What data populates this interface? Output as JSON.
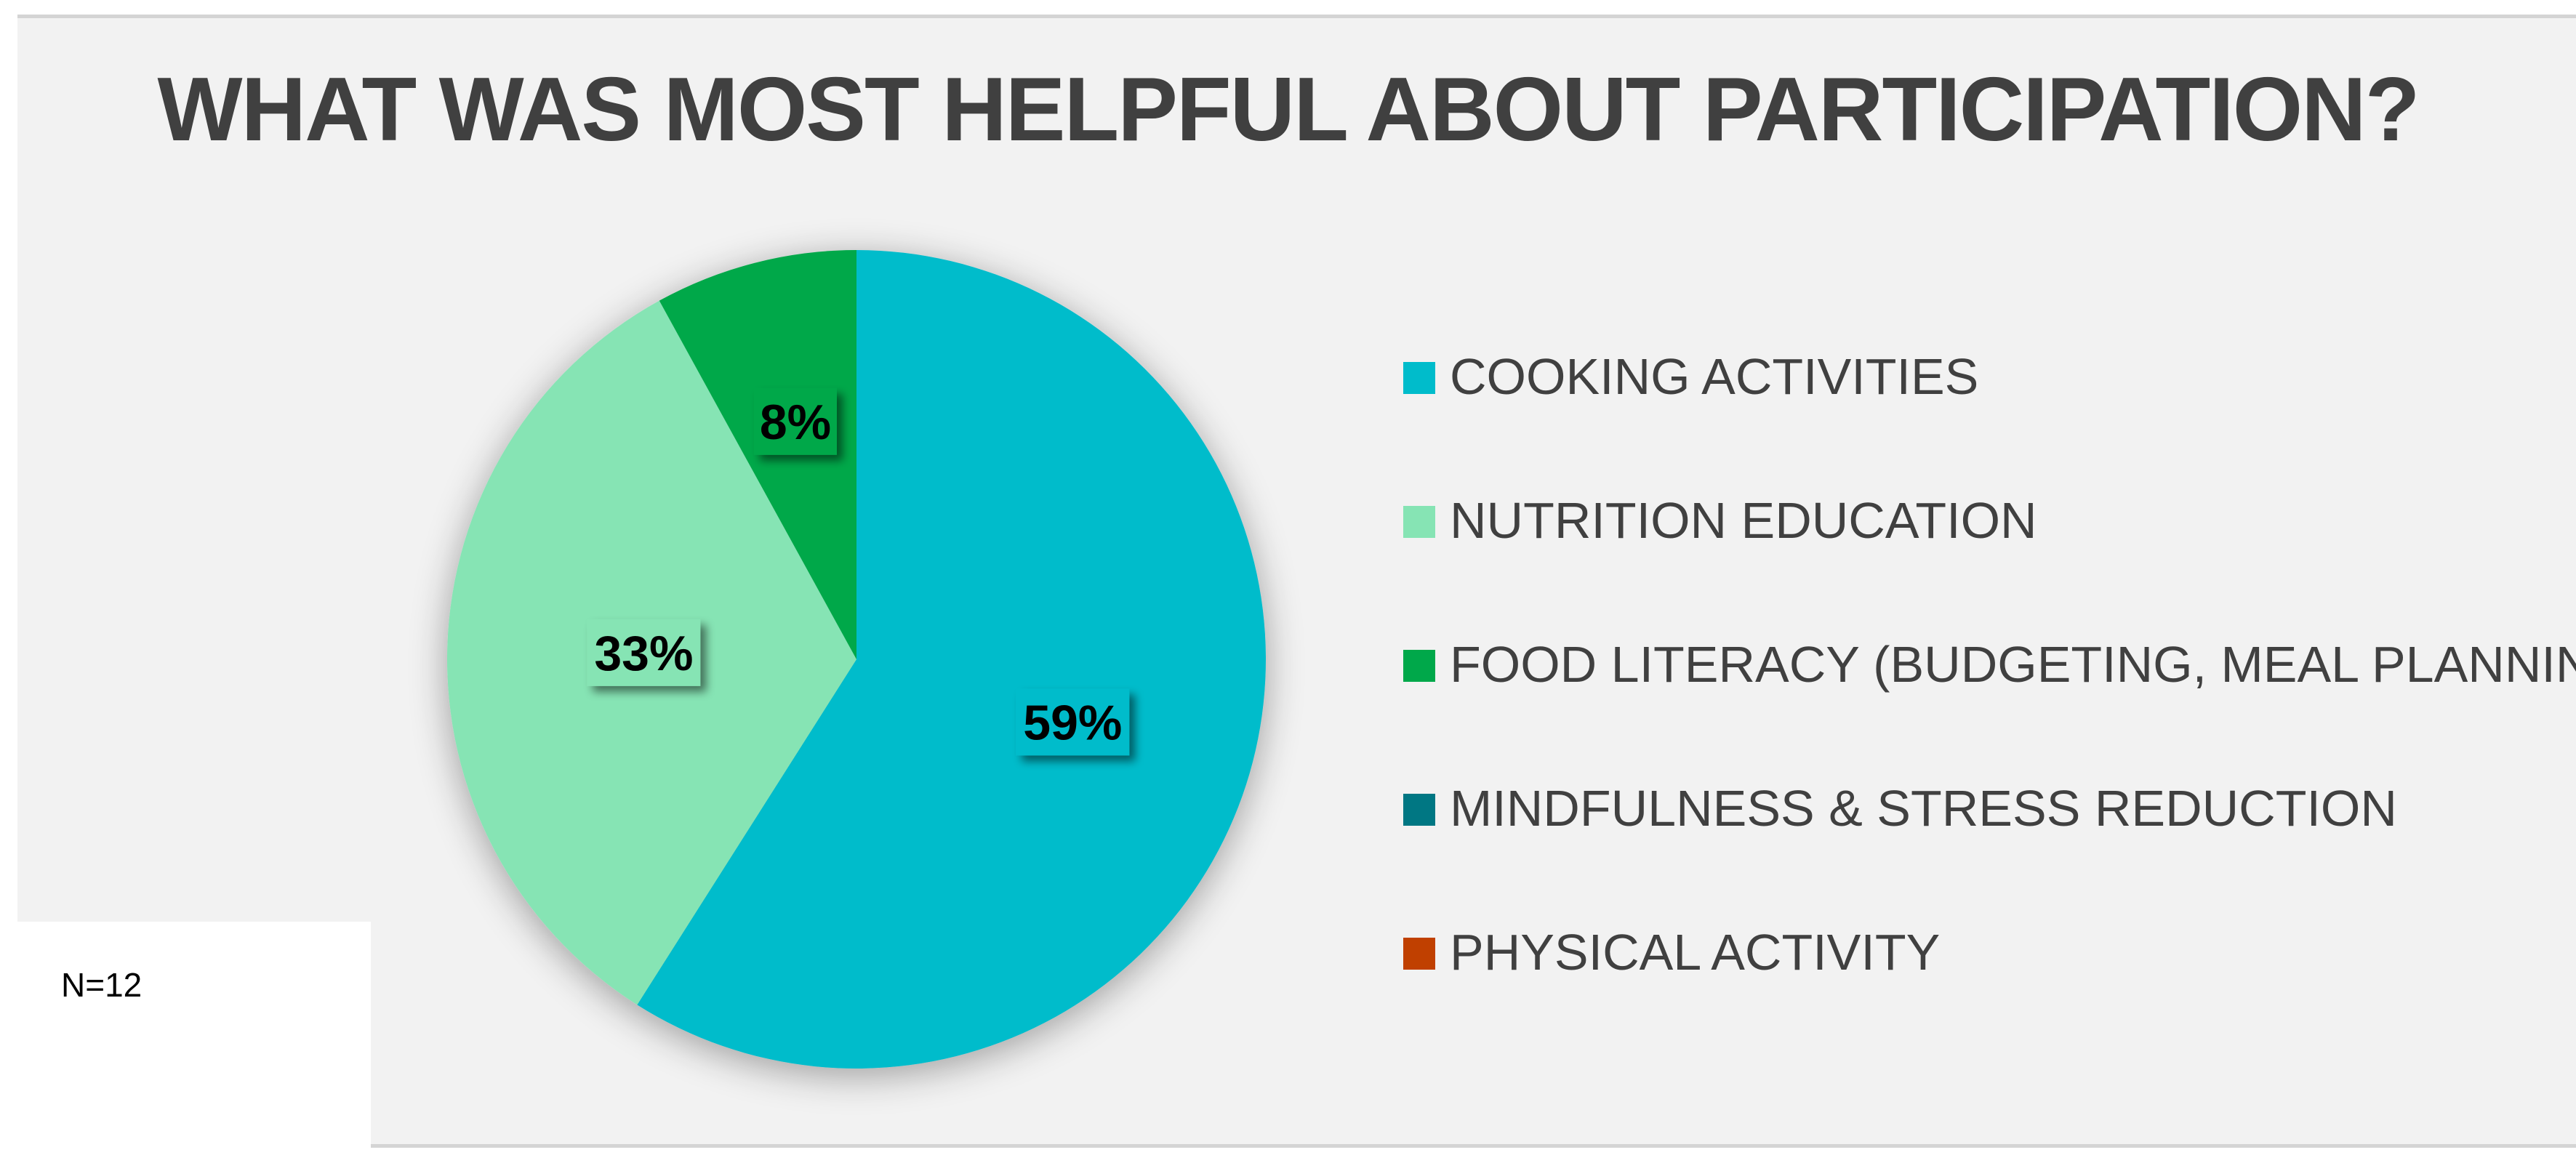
{
  "chart_data": {
    "type": "pie",
    "title": "WHAT WAS MOST HELPFUL ABOUT PARTICIPATION?",
    "categories": [
      "COOKING ACTIVITIES",
      "NUTRITION EDUCATION",
      "FOOD LITERACY (BUDGETING, MEAL PLANNING)",
      "MINDFULNESS & STRESS REDUCTION",
      "PHYSICAL ACTIVITY"
    ],
    "values": [
      59,
      33,
      8,
      0,
      0
    ],
    "data_labels": [
      "59%",
      "33%",
      "8%",
      "",
      ""
    ],
    "colors": [
      "#00bccb",
      "#86e4b4",
      "#00a84a",
      "#007783",
      "#c04000"
    ],
    "legend_position": "right",
    "note": "N=12"
  }
}
